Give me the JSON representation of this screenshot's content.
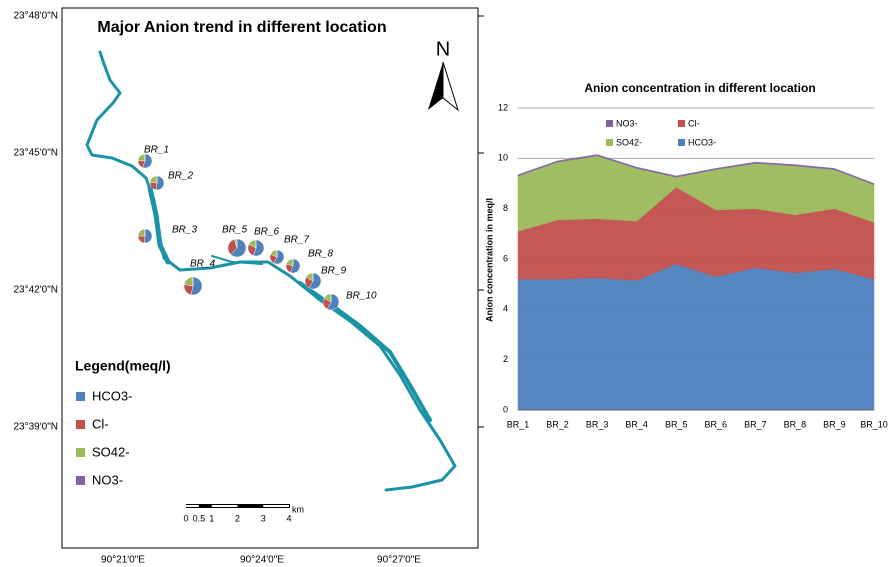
{
  "map": {
    "title": "Major Anion trend in different location",
    "north": "N",
    "lat_labels": [
      "23°48'0\"N",
      "23°45'0\"N",
      "23°42'0\"N",
      "23°39'0\"N"
    ],
    "lon_labels": [
      "90°21'0\"E",
      "90°24'0\"E",
      "90°27'0\"E"
    ],
    "legend_title": "Legend(meq/l)",
    "scale_labels": [
      0,
      0.5,
      1,
      2,
      3,
      4
    ],
    "scale_unit": "km"
  },
  "chart_data": {
    "type": "area",
    "stacked": true,
    "title": "Anion concentration in different location",
    "y_label": "Anion concentration in meq/l",
    "categories": [
      "BR_1",
      "BR_2",
      "BR_3",
      "BR_4",
      "BR_5",
      "BR_6",
      "BR_7",
      "BR_8",
      "BR_9",
      "BR_10"
    ],
    "series": [
      {
        "name": "HCO3-",
        "color": "#4f81bd",
        "values": [
          5.2,
          5.2,
          5.25,
          5.15,
          5.8,
          5.3,
          5.65,
          5.45,
          5.6,
          5.2
        ]
      },
      {
        "name": "Cl-",
        "color": "#c0504d",
        "values": [
          1.9,
          2.35,
          2.35,
          2.35,
          3.05,
          2.65,
          2.35,
          2.3,
          2.4,
          2.25
        ]
      },
      {
        "name": "SO42-",
        "color": "#9bbb59",
        "values": [
          2.2,
          2.3,
          2.5,
          2.1,
          0.4,
          1.6,
          1.8,
          1.95,
          1.55,
          1.5
        ]
      },
      {
        "name": "NO3-",
        "color": "#8064a2",
        "values": [
          0.05,
          0.05,
          0.05,
          0.05,
          0.05,
          0.05,
          0.05,
          0.05,
          0.05,
          0.05
        ]
      }
    ],
    "ylim": [
      0,
      12
    ],
    "yticks": [
      0,
      2,
      4,
      6,
      8,
      10,
      12
    ],
    "grid": true
  }
}
